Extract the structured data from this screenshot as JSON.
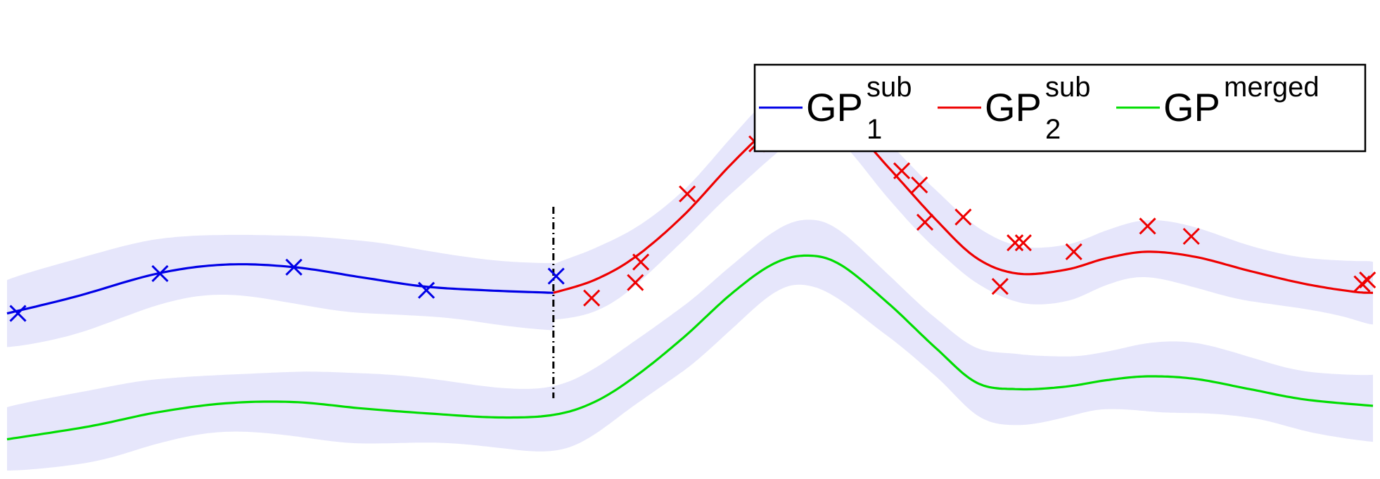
{
  "chart_data": {
    "type": "line",
    "title": "",
    "xlabel": "",
    "ylabel": "",
    "xlim": [
      0,
      10
    ],
    "ylim": [
      -1.45,
      2.0
    ],
    "grid": false,
    "axes_visible": false,
    "legend": {
      "placement": "top-right",
      "entries": [
        {
          "base": "GP",
          "sup": "sub",
          "sub": "1",
          "color": "#0000e6"
        },
        {
          "base": "GP",
          "sup": "sub",
          "sub": "2",
          "color": "#ee0000"
        },
        {
          "base": "GP",
          "sup": "merged",
          "sub": "",
          "color": "#00dd00"
        }
      ]
    },
    "band_color": "#e6e6fb",
    "split_x": 4.0,
    "series": [
      {
        "key": "gp1",
        "style": "line+band",
        "color": "#0000e6",
        "x": [
          0.0,
          0.5,
          1.1,
          1.6,
          2.1,
          2.6,
          3.05,
          3.5,
          4.0
        ],
        "y": [
          -0.21,
          -0.08,
          0.1,
          0.17,
          0.15,
          0.07,
          0.0,
          -0.03,
          -0.05
        ],
        "band": 0.26
      },
      {
        "key": "gp1_points",
        "style": "markers",
        "color": "#0000e6",
        "x": [
          0.08,
          1.12,
          2.1,
          3.07,
          4.02
        ],
        "y": [
          -0.21,
          0.1,
          0.15,
          -0.03,
          0.08
        ]
      },
      {
        "key": "gp2",
        "style": "line+band",
        "color": "#ee0000",
        "x": [
          4.0,
          4.3,
          4.6,
          4.95,
          5.3,
          5.6,
          5.85,
          6.1,
          6.45,
          6.8,
          7.1,
          7.4,
          7.75,
          8.05,
          8.35,
          8.7,
          9.1,
          9.5,
          9.85,
          10.0
        ],
        "y": [
          -0.05,
          0.05,
          0.23,
          0.55,
          0.95,
          1.25,
          1.4,
          1.33,
          0.93,
          0.52,
          0.22,
          0.1,
          0.13,
          0.22,
          0.27,
          0.23,
          0.12,
          0.02,
          -0.04,
          -0.05
        ],
        "band": 0.22
      },
      {
        "key": "gp2_points",
        "style": "markers",
        "color": "#ee0000",
        "x": [
          4.28,
          4.6,
          4.64,
          4.98,
          5.49,
          5.9,
          6.09,
          6.16,
          6.55,
          6.68,
          6.72,
          7.0,
          7.27,
          7.38,
          7.44,
          7.81,
          8.35,
          8.67,
          9.92,
          9.96
        ],
        "y": [
          -0.09,
          0.03,
          0.19,
          0.72,
          1.11,
          1.37,
          1.45,
          1.22,
          0.9,
          0.79,
          0.5,
          0.54,
          0.0,
          0.34,
          0.34,
          0.27,
          0.47,
          0.39,
          0.02,
          0.05
        ],
        "label_note": ""
      },
      {
        "key": "merged",
        "style": "line+band",
        "color": "#00dd00",
        "x": [
          0.0,
          0.6,
          1.1,
          1.6,
          2.1,
          2.6,
          3.1,
          3.6,
          4.0,
          4.3,
          4.6,
          4.95,
          5.3,
          5.6,
          5.85,
          6.1,
          6.45,
          6.8,
          7.1,
          7.4,
          7.75,
          8.05,
          8.35,
          8.7,
          9.1,
          9.5,
          10.0
        ],
        "y": [
          -1.19,
          -1.09,
          -0.98,
          -0.91,
          -0.9,
          -0.95,
          -0.99,
          -1.02,
          -1.0,
          -0.9,
          -0.7,
          -0.4,
          -0.06,
          0.17,
          0.24,
          0.17,
          -0.13,
          -0.48,
          -0.75,
          -0.8,
          -0.78,
          -0.73,
          -0.7,
          -0.72,
          -0.8,
          -0.88,
          -0.93
        ],
        "band": 0.25
      }
    ]
  }
}
